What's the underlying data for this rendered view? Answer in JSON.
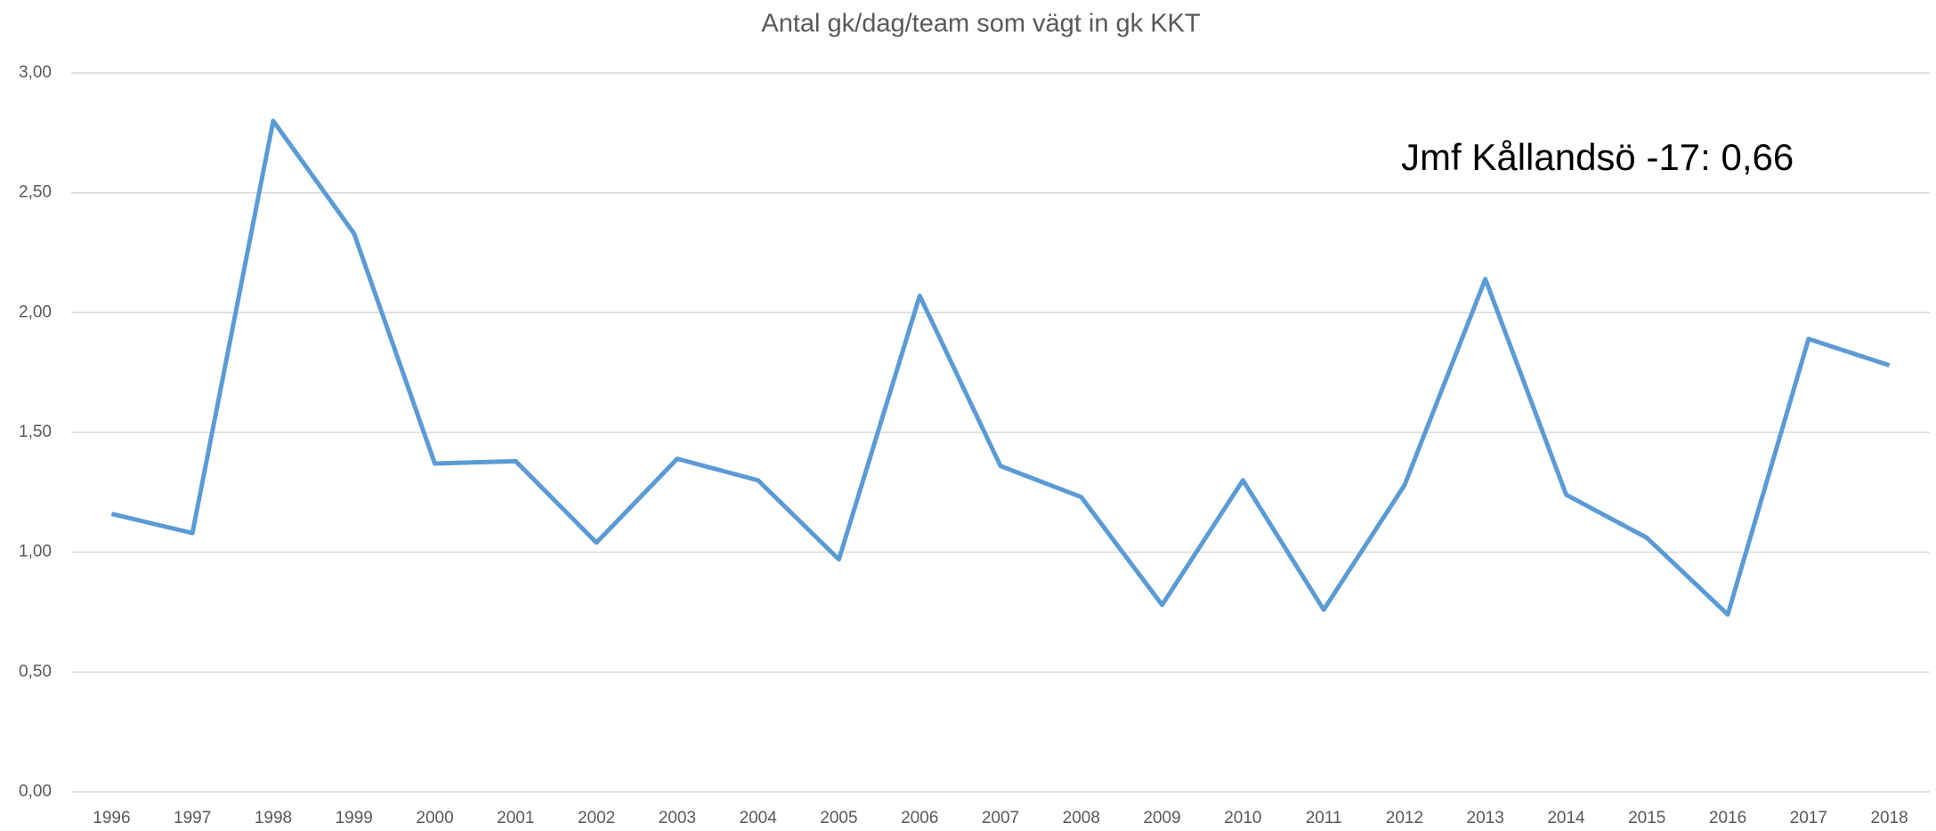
{
  "chart_data": {
    "type": "line",
    "title": "Antal gk/dag/team som vägt in gk KKT",
    "annotation": "Jmf Kållandsö -17: 0,66",
    "x": [
      1996,
      1997,
      1998,
      1999,
      2000,
      2001,
      2002,
      2003,
      2004,
      2005,
      2006,
      2007,
      2008,
      2009,
      2010,
      2011,
      2012,
      2013,
      2014,
      2015,
      2016,
      2017,
      2018
    ],
    "series": [
      {
        "name": "Antal gk/dag/team",
        "color": "#5b9bd5",
        "values": [
          1.16,
          1.08,
          2.8,
          2.33,
          1.37,
          1.38,
          1.04,
          1.39,
          1.3,
          0.97,
          2.07,
          1.36,
          1.23,
          0.78,
          1.3,
          0.76,
          1.28,
          2.14,
          1.24,
          1.06,
          0.74,
          1.89,
          1.78
        ]
      }
    ],
    "xlim": [
      1995.5,
      2018.5
    ],
    "ylim": [
      0,
      3
    ],
    "yticks": [
      {
        "value": 0,
        "label": "0,00"
      },
      {
        "value": 0.5,
        "label": "0,50"
      },
      {
        "value": 1,
        "label": "1,00"
      },
      {
        "value": 1.5,
        "label": "1,50"
      },
      {
        "value": 2,
        "label": "2,00"
      },
      {
        "value": 2.5,
        "label": "2,50"
      },
      {
        "value": 3,
        "label": "3,00"
      }
    ],
    "grid": true
  }
}
